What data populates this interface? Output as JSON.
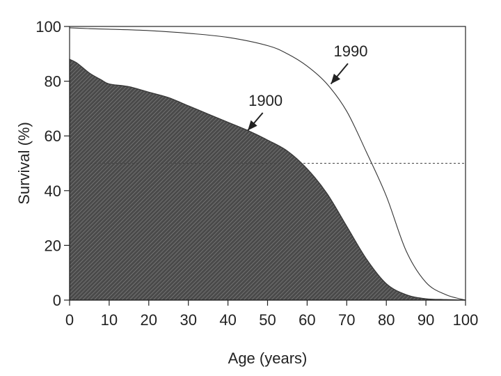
{
  "chart_data": {
    "type": "area",
    "title": "",
    "xlabel": "Age (years)",
    "ylabel": "Survival (%)",
    "xlim": [
      0,
      100
    ],
    "ylim": [
      0,
      100
    ],
    "x_ticks": [
      0,
      10,
      20,
      30,
      40,
      50,
      60,
      70,
      80,
      90,
      100
    ],
    "y_ticks": [
      0,
      20,
      40,
      60,
      80,
      100
    ],
    "grid": false,
    "reference_line": {
      "y": 50,
      "style": "dashed"
    },
    "series": [
      {
        "name": "1990",
        "style": "line",
        "x": [
          0,
          5,
          10,
          20,
          30,
          40,
          50,
          55,
          60,
          65,
          70,
          75,
          80,
          85,
          90,
          95,
          100
        ],
        "values": [
          99.5,
          99.2,
          99,
          98.5,
          97.5,
          96,
          93,
          90,
          85.5,
          79,
          69,
          54,
          38,
          18,
          6.5,
          2,
          0
        ]
      },
      {
        "name": "1900",
        "style": "filled-area",
        "x": [
          0,
          2,
          5,
          8,
          10,
          15,
          20,
          25,
          30,
          35,
          40,
          45,
          50,
          55,
          60,
          65,
          70,
          75,
          80,
          85,
          90,
          95,
          100
        ],
        "values": [
          88,
          86.5,
          83,
          80.5,
          79,
          78,
          76,
          74,
          71,
          68,
          65,
          62,
          58.5,
          54.5,
          48,
          39,
          27,
          15,
          6,
          2,
          0.5,
          0.2,
          0
        ]
      }
    ],
    "annotations": [
      {
        "text": "1990",
        "target_series": "1990",
        "arrow_to": {
          "x": 66,
          "y": 79
        },
        "text_at": {
          "x": 71,
          "y": 89
        }
      },
      {
        "text": "1900",
        "target_series": "1900",
        "arrow_to": {
          "x": 45,
          "y": 62
        },
        "text_at": {
          "x": 49.5,
          "y": 71
        }
      }
    ],
    "colors": {
      "area_fill": "#555555",
      "line": "#333333",
      "axis": "#222222"
    }
  }
}
